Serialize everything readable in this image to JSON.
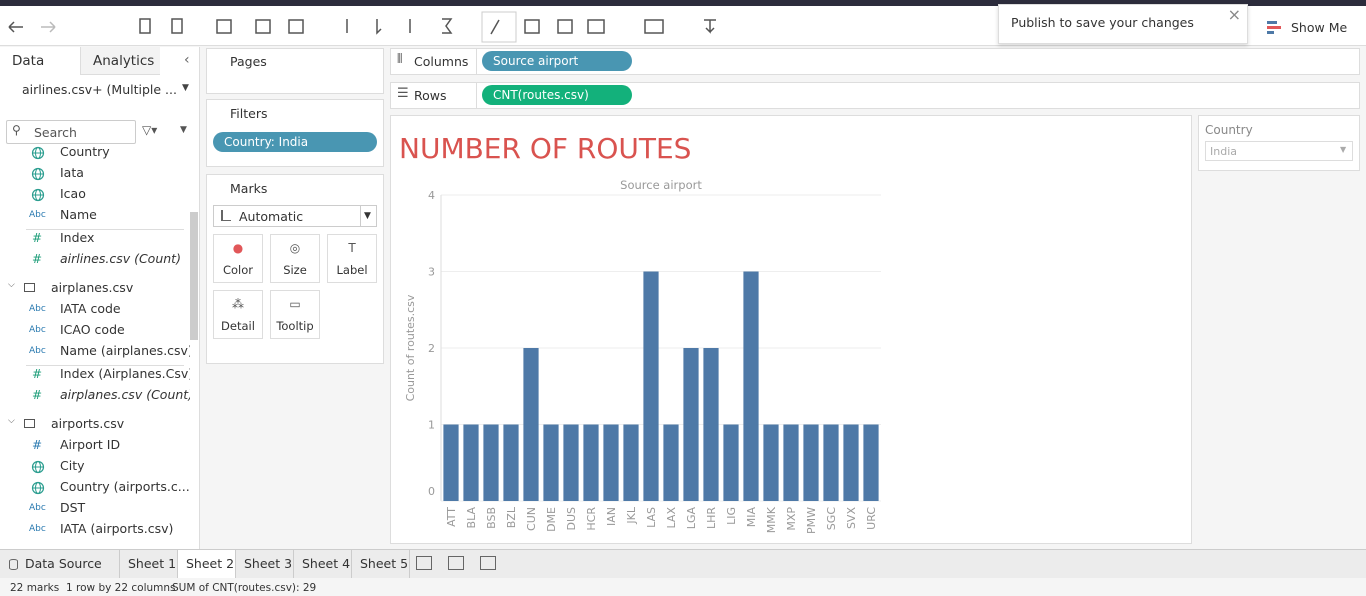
{
  "toolbar": {
    "publish_notice": "Publish to save your changes",
    "show_me": "Show Me"
  },
  "data_pane": {
    "tabs": [
      "Data",
      "Analytics"
    ],
    "active_tab": 0,
    "datasource": "airlines.csv+ (Multiple ...",
    "search": "Search",
    "groups": [
      {
        "fields": [
          {
            "name": "Country"
          },
          {
            "name": "Iata"
          },
          {
            "name": "Icao"
          },
          {
            "icon": "Abc",
            "name": "Name"
          },
          {
            "icon": "#",
            "name": "Index",
            "measure": true
          },
          {
            "icon": "#",
            "name": "airlines.csv (Count)",
            "measure": true,
            "italic": true
          }
        ]
      },
      {
        "name": "airplanes.csv",
        "fields": [
          {
            "icon": "Abc",
            "name": "IATA code"
          },
          {
            "icon": "Abc",
            "name": "ICAO code"
          },
          {
            "icon": "Abc",
            "name": "Name (airplanes.csv)"
          },
          {
            "icon": "#",
            "name": "Index (Airplanes.Csv)",
            "measure": true
          },
          {
            "icon": "#",
            "name": "airplanes.csv (Count)",
            "measure": true,
            "italic": true
          }
        ]
      },
      {
        "name": "airports.csv",
        "fields": [
          {
            "icon": "#",
            "name": "Airport ID"
          },
          {
            "name": "City"
          },
          {
            "name": "Country (airports.c..."
          },
          {
            "icon": "Abc",
            "name": "DST"
          },
          {
            "icon": "Abc",
            "name": "IATA (airports.csv)"
          }
        ]
      }
    ]
  },
  "cards": {
    "pages": "Pages",
    "filters": {
      "title": "Filters",
      "pills": [
        "Country: India"
      ]
    },
    "marks": {
      "title": "Marks",
      "mark_type": "Automatic",
      "buttons": [
        "Color",
        "Size",
        "Label",
        "Detail",
        "Tooltip"
      ]
    }
  },
  "shelves": {
    "columns": {
      "label": "Columns",
      "pills": [
        "Source airport"
      ]
    },
    "rows": {
      "label": "Rows",
      "pills": [
        "CNT(routes.csv)"
      ]
    }
  },
  "filter_card": {
    "title": "Country",
    "value": "India"
  },
  "chart_data": {
    "type": "bar",
    "title": "NUMBER OF ROUTES",
    "title_color": "#d9534f",
    "x_label": "Source airport",
    "y_label": "Count of routes.csv",
    "categories": [
      "ATT",
      "BLA",
      "BSB",
      "BZL",
      "CUN",
      "DME",
      "DUS",
      "HCR",
      "IAN",
      "JKL",
      "LAS",
      "LAX",
      "LGA",
      "LHR",
      "LIG",
      "MIA",
      "MMK",
      "MXP",
      "PMW",
      "SGC",
      "SVX",
      "URC"
    ],
    "values": [
      1,
      1,
      1,
      1,
      2,
      1,
      1,
      1,
      1,
      1,
      3,
      1,
      2,
      2,
      1,
      3,
      1,
      1,
      1,
      1,
      1,
      1
    ],
    "color": "#4e79a7",
    "ylim": [
      0,
      4
    ],
    "yticks": [
      0,
      1,
      2,
      3,
      4
    ],
    "grid": true
  },
  "sheet_tabs": {
    "tabs": [
      "Data Source",
      "Sheet 1",
      "Sheet 2",
      "Sheet 3",
      "Sheet 4",
      "Sheet 5"
    ],
    "active": 2
  },
  "status_bar": [
    "22 marks",
    "1 row by 22 columns",
    "SUM of CNT(routes.csv): 29"
  ]
}
